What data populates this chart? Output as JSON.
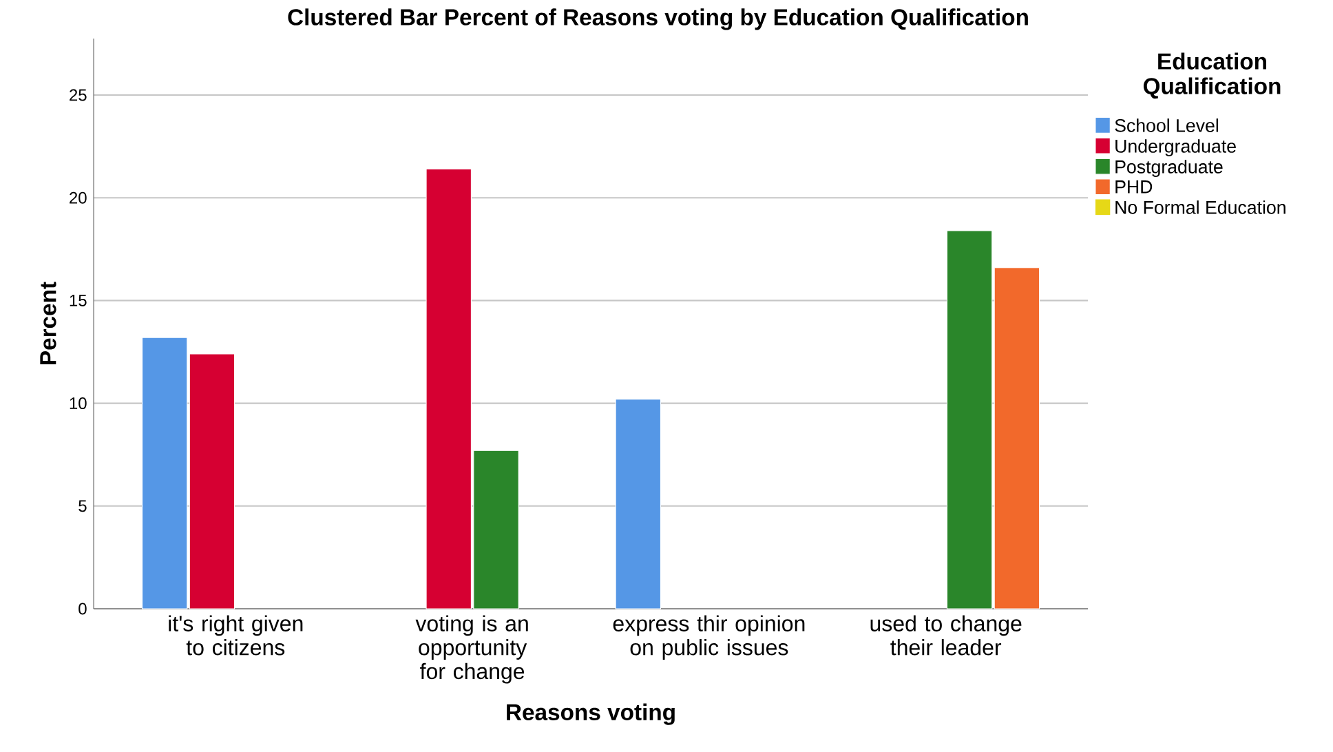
{
  "chart_data": {
    "type": "bar",
    "title": "Clustered Bar Percent of Reasons voting  by Education Qualification",
    "xlabel": "Reasons voting",
    "ylabel": "Percent",
    "legend_title": "Education Qualification",
    "categories": [
      "it's right given to citizens",
      "voting is an opportunity for change",
      "express thir opinion on public issues",
      "used to change their leader"
    ],
    "series": [
      {
        "name": "School Level",
        "color": "#5597e6",
        "values": [
          13.2,
          null,
          10.2,
          null
        ]
      },
      {
        "name": "Undergraduate",
        "color": "#d60032",
        "values": [
          12.4,
          21.4,
          null,
          null
        ]
      },
      {
        "name": "Postgraduate",
        "color": "#2a862a",
        "values": [
          null,
          7.7,
          null,
          18.4
        ]
      },
      {
        "name": "PHD",
        "color": "#f2692b",
        "values": [
          null,
          null,
          null,
          16.6
        ]
      },
      {
        "name": "No Formal Education",
        "color": "#e6d817",
        "values": [
          null,
          null,
          null,
          null
        ]
      }
    ],
    "ylim": [
      0,
      27.75
    ],
    "yticks": [
      0,
      5,
      10,
      15,
      20,
      25
    ],
    "grid": "y",
    "legend": "right"
  }
}
